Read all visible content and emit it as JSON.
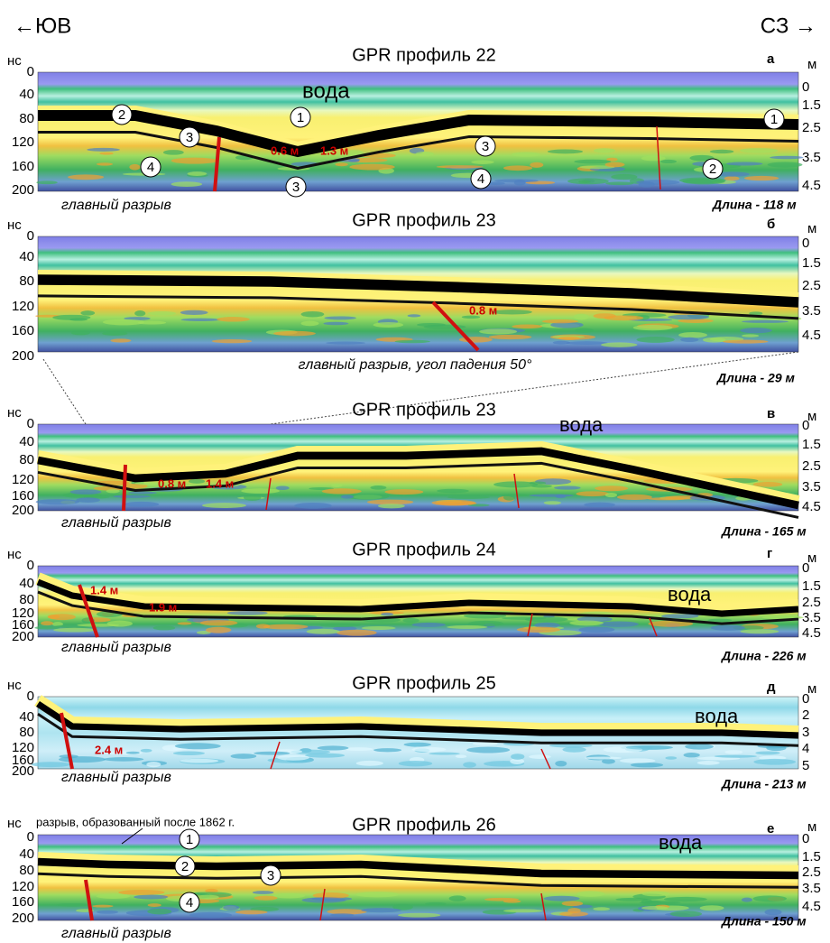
{
  "header": {
    "left_direction": "←ЮВ",
    "right_direction": "СЗ →"
  },
  "panels": [
    {
      "title": "GPR профиль 22",
      "letter": "а",
      "left_unit": "нс",
      "left_ticks": [
        "0",
        "40",
        "80",
        "120",
        "160",
        "200"
      ],
      "right_unit": "м",
      "right_ticks": [
        "0",
        "1.5",
        "2.5",
        "3.5",
        "4.5"
      ],
      "annotations": [
        "вода",
        "0.6 м",
        "1.3 м"
      ],
      "markers": [
        "2",
        "1",
        "3",
        "4",
        "3",
        "3",
        "4",
        "2",
        "1"
      ],
      "caption": "главный разрыв",
      "length": "Длина - 118 м"
    },
    {
      "title": "GPR профиль 23",
      "letter": "б",
      "left_unit": "нс",
      "left_ticks": [
        "0",
        "40",
        "80",
        "120",
        "160",
        "200"
      ],
      "right_unit": "м",
      "right_ticks": [
        "0",
        "1.5",
        "2.5",
        "3.5",
        "4.5"
      ],
      "annotations": [
        "0.8 м"
      ],
      "markers": [],
      "caption": "главный разрыв, угол падения 50°",
      "length": "Длина - 29 м"
    },
    {
      "title": "GPR профиль 23",
      "letter": "в",
      "left_unit": "нс",
      "left_ticks": [
        "0",
        "40",
        "80",
        "120",
        "160",
        "200"
      ],
      "right_unit": "м",
      "right_ticks": [
        "0",
        "1.5",
        "2.5",
        "3.5",
        "4.5"
      ],
      "annotations": [
        "вода",
        "0.8 м",
        "1.4 м"
      ],
      "markers": [],
      "caption": "главный разрыв",
      "length": "Длина - 165 м"
    },
    {
      "title": "GPR профиль 24",
      "letter": "г",
      "left_unit": "нс",
      "left_ticks": [
        "0",
        "40",
        "80",
        "120",
        "160",
        "200"
      ],
      "right_unit": "м",
      "right_ticks": [
        "0",
        "1.5",
        "2.5",
        "3.5",
        "4.5"
      ],
      "annotations": [
        "вода",
        "1.4 м",
        "1.9 м"
      ],
      "markers": [],
      "caption": "главный разрыв",
      "length": "Длина - 226 м"
    },
    {
      "title": "GPR профиль 25",
      "letter": "д",
      "left_unit": "нс",
      "left_ticks": [
        "0",
        "40",
        "80",
        "120",
        "160",
        "200"
      ],
      "right_unit": "м",
      "right_ticks": [
        "0",
        "2",
        "3",
        "4",
        "5"
      ],
      "annotations": [
        "вода",
        "2.4 м"
      ],
      "markers": [],
      "caption": "главный разрыв",
      "length": "Длина - 213 м"
    },
    {
      "title": "GPR профиль 26",
      "letter": "е",
      "left_unit": "нс",
      "left_ticks": [
        "0",
        "40",
        "80",
        "120",
        "160",
        "200"
      ],
      "right_unit": "м",
      "right_ticks": [
        "0",
        "1.5",
        "2.5",
        "3.5",
        "4.5"
      ],
      "annotations": [
        "вода",
        "разрыв, образованный после 1862 г."
      ],
      "markers": [
        "1",
        "2",
        "3",
        "4"
      ],
      "caption": "главный разрыв",
      "length": "Длина - 150 м"
    }
  ]
}
